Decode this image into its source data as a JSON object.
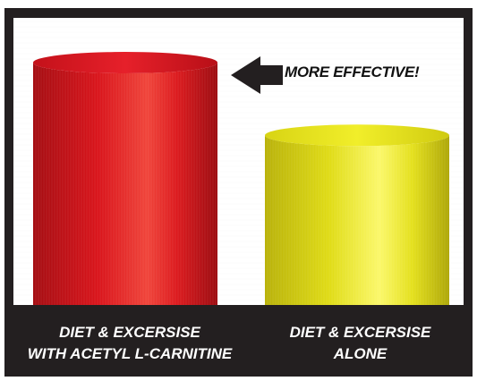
{
  "chart_data": {
    "type": "bar",
    "categories": [
      "DIET & EXCERSISE WITH ACETYL L-CARNITINE",
      "DIET & EXCERSISE ALONE"
    ],
    "category_lines": [
      [
        "DIET & EXCERSISE",
        "WITH ACETYL L-CARNITINE"
      ],
      [
        "DIET & EXCERSISE",
        "ALONE"
      ]
    ],
    "values": [
      100,
      70
    ],
    "colors": [
      "#d8141c",
      "#e3e01a"
    ],
    "annotation": "MORE EFFECTIVE!",
    "annotation_target": "DIET & EXCERSISE WITH ACETYL L-CARNITINE",
    "title": "",
    "xlabel": "",
    "ylabel": "",
    "grid": false,
    "legend": "none"
  }
}
